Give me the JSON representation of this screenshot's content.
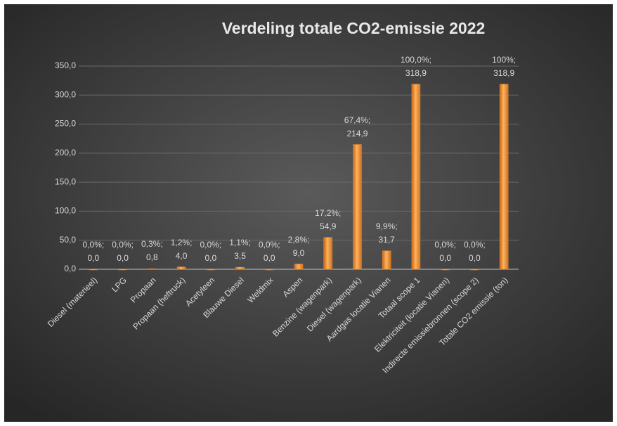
{
  "chart_data": {
    "type": "bar",
    "title": "Verdeling totale CO2-emissie 2022",
    "categories": [
      "Diesel (materieel)",
      "LPG",
      "Propaan",
      "Propaan (heftruck)",
      "Acetyleen",
      "Blauwe Diesel",
      "Weldmix",
      "Aspen",
      "Benzine (wagenpark)",
      "Diesel (wagenpark)",
      "Aardgas locatie Vianen",
      "Totaal scope 1",
      "Elektriciteit (locatie Vianen)",
      "Indirecte emissiebronnen (scope 2)",
      "Totale CO2 emissie (ton)"
    ],
    "values": [
      0,
      0,
      0.8,
      4.0,
      0,
      3.5,
      0,
      9.0,
      54.9,
      214.9,
      31.7,
      318.9,
      0,
      0,
      318.9
    ],
    "value_labels": [
      "0,0%; 0,0",
      "0,0%; 0,0",
      "0,3%; 0,8",
      "1,2%; 4,0",
      "0,0%; 0,0",
      "1,1%; 3,5",
      "0,0%; 0,0",
      "2,8%; 9,0",
      "17,2%; 54,9",
      "67,4%; 214,9",
      "9,9%; 31,7",
      "100,0%; 318,9",
      "0,0%; 0,0",
      "0,0%; 0,0",
      "100%; 318,9"
    ],
    "color": "#f39130",
    "ylim": [
      0,
      350
    ],
    "yticks": [
      {
        "value": 0,
        "label": "0,0"
      },
      {
        "value": 50,
        "label": "50,0"
      },
      {
        "value": 100,
        "label": "100,0"
      },
      {
        "value": 150,
        "label": "150,0"
      },
      {
        "value": 200,
        "label": "200,0"
      },
      {
        "value": 250,
        "label": "250,0"
      },
      {
        "value": 300,
        "label": "300,0"
      },
      {
        "value": 350,
        "label": "350,0"
      }
    ],
    "grid": true
  }
}
